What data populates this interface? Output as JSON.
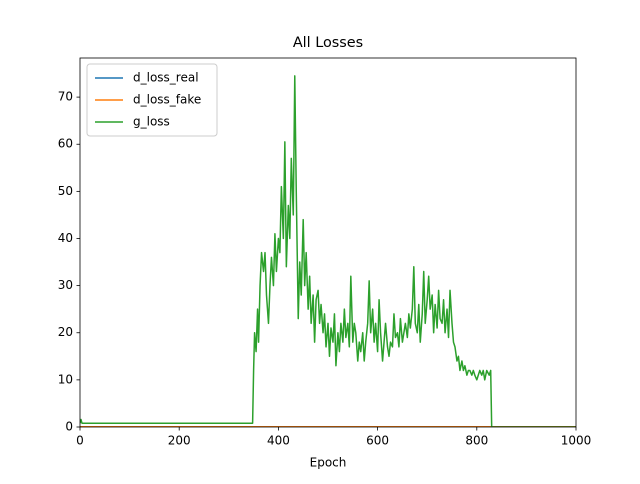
{
  "chart_data": {
    "type": "line",
    "title": "All Losses",
    "x_label": "Epoch",
    "xlim": [
      0,
      1000
    ],
    "ylim": [
      0,
      78.3
    ],
    "xticks": [
      0,
      200,
      400,
      600,
      800,
      1000
    ],
    "yticks": [
      0,
      10,
      20,
      30,
      40,
      50,
      60,
      70
    ],
    "legend": "upper left",
    "grid": false,
    "series": [
      {
        "name": "d_loss_real",
        "color": "#1f77b4",
        "x": [
          0,
          350,
          830,
          1000
        ],
        "values": [
          0.05,
          0.05,
          0.05,
          0.05
        ]
      },
      {
        "name": "d_loss_fake",
        "color": "#ff7f0e",
        "x": [
          0,
          350,
          830,
          1000
        ],
        "values": [
          0.05,
          0.05,
          0.05,
          0.05
        ]
      },
      {
        "name": "g_loss",
        "color": "#2ca02c",
        "x": [
          0,
          2,
          4,
          10,
          50,
          100,
          200,
          300,
          348,
          350,
          352,
          355,
          358,
          360,
          363,
          366,
          370,
          373,
          376,
          380,
          383,
          386,
          390,
          393,
          396,
          400,
          403,
          406,
          410,
          413,
          416,
          420,
          423,
          426,
          430,
          433,
          436,
          440,
          443,
          446,
          450,
          453,
          456,
          460,
          463,
          466,
          470,
          473,
          476,
          480,
          483,
          486,
          490,
          493,
          496,
          500,
          503,
          506,
          510,
          513,
          516,
          520,
          523,
          526,
          530,
          533,
          536,
          540,
          543,
          546,
          550,
          553,
          556,
          560,
          563,
          566,
          570,
          573,
          576,
          580,
          583,
          586,
          590,
          593,
          596,
          600,
          603,
          606,
          610,
          613,
          616,
          620,
          623,
          626,
          630,
          633,
          636,
          640,
          643,
          646,
          650,
          653,
          656,
          660,
          663,
          666,
          670,
          673,
          676,
          680,
          683,
          686,
          690,
          693,
          696,
          700,
          703,
          706,
          710,
          713,
          716,
          720,
          723,
          726,
          730,
          733,
          736,
          740,
          743,
          746,
          750,
          753,
          756,
          760,
          763,
          766,
          770,
          773,
          776,
          780,
          783,
          786,
          790,
          793,
          796,
          800,
          803,
          806,
          810,
          813,
          816,
          820,
          825,
          828,
          830,
          835,
          900,
          1000
        ],
        "values": [
          0.8,
          1.6,
          0.8,
          0.8,
          0.8,
          0.8,
          0.8,
          0.8,
          0.8,
          12,
          20,
          16,
          25,
          18,
          30,
          37,
          33,
          37,
          28,
          22,
          30,
          36,
          30,
          41,
          33,
          40,
          37,
          51,
          40,
          60.5,
          34,
          47,
          40,
          57,
          45,
          74.5,
          50,
          23,
          35,
          28,
          44,
          30,
          37,
          25,
          32,
          22,
          28,
          18,
          27,
          29,
          22,
          26,
          20,
          24,
          17,
          22,
          15,
          21,
          18,
          24,
          13,
          20,
          16,
          22,
          18,
          25,
          19,
          22,
          17,
          32,
          18,
          22,
          20,
          14,
          18,
          16,
          20,
          14,
          18,
          22,
          31,
          20,
          25,
          18,
          22,
          16,
          27,
          20,
          14,
          18,
          22,
          17,
          15,
          18,
          17,
          24,
          19,
          20,
          17,
          23,
          18,
          20,
          22,
          19,
          24,
          21,
          25,
          34,
          22,
          20,
          26,
          18,
          24,
          33,
          22,
          27,
          32,
          25,
          28,
          20,
          26,
          21,
          29,
          23,
          22,
          27,
          20,
          25,
          19,
          29,
          22,
          18,
          17,
          14,
          15,
          12,
          14,
          12,
          13,
          11,
          12,
          12,
          11,
          12,
          11,
          10,
          11,
          12,
          11,
          12,
          10,
          12,
          11,
          12,
          0,
          0,
          0,
          0
        ]
      }
    ]
  }
}
